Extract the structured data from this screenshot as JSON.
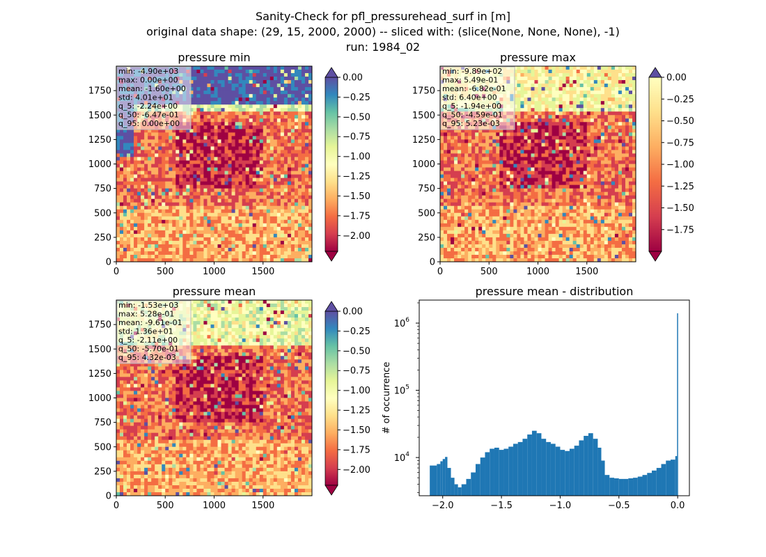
{
  "figure": {
    "title_lines": [
      "Sanity-Check for pfl_pressurehead_surf in [m]",
      "original data shape: (29, 15, 2000, 2000) -- sliced with: (slice(None, None, None), -1)",
      "run: 1984_02"
    ]
  },
  "chart_data": [
    {
      "type": "heatmap",
      "title": "pressure min",
      "colormap": "Spectral",
      "xlim": [
        0,
        2000
      ],
      "ylim": [
        0,
        2000
      ],
      "xticks": [
        "0",
        "500",
        "1000",
        "1500"
      ],
      "yticks": [
        "0",
        "250",
        "500",
        "750",
        "1000",
        "1250",
        "1500",
        "1750"
      ],
      "colorbar": {
        "range": [
          -2.2,
          0.0
        ],
        "extend": "both",
        "ticks": [
          "0.00",
          "−0.25",
          "−0.50",
          "−0.75",
          "−1.00",
          "−1.25",
          "−1.50",
          "−1.75",
          "−2.00"
        ]
      },
      "stats": [
        "min: -4.90e+03",
        "max: 0.00e+00",
        "mean: -1.60e+00",
        "std: 4.01e+01",
        "q_5: -2.24e+00",
        "q_50: -6.47e-01",
        "q_95: 0.00e+00"
      ]
    },
    {
      "type": "heatmap",
      "title": "pressure max",
      "colormap": "Spectral",
      "xlim": [
        0,
        2000
      ],
      "ylim": [
        0,
        2000
      ],
      "xticks": [
        "0",
        "500",
        "1000",
        "1500"
      ],
      "yticks": [
        "0",
        "250",
        "500",
        "750",
        "1000",
        "1250",
        "1500",
        "1750"
      ],
      "colorbar": {
        "range": [
          -2.0,
          0.0
        ],
        "extend": "both",
        "ticks": [
          "0.00",
          "−0.25",
          "−0.50",
          "−0.75",
          "−1.00",
          "−1.25",
          "−1.50",
          "−1.75"
        ]
      },
      "stats": [
        "min: -9.89e+02",
        "max: 5.49e-01",
        "mean: -6.82e-01",
        "std: 6.40e+00",
        "q_5: -1.94e+00",
        "q_50: -4.59e-01",
        "q_95: 5.23e-03"
      ]
    },
    {
      "type": "heatmap",
      "title": "pressure mean",
      "colormap": "Spectral",
      "xlim": [
        0,
        2000
      ],
      "ylim": [
        0,
        2000
      ],
      "xticks": [
        "0",
        "500",
        "1000",
        "1500"
      ],
      "yticks": [
        "0",
        "250",
        "500",
        "750",
        "1000",
        "1250",
        "1500",
        "1750"
      ],
      "colorbar": {
        "range": [
          -2.2,
          0.0
        ],
        "extend": "both",
        "ticks": [
          "0.00",
          "−0.25",
          "−0.50",
          "−0.75",
          "−1.00",
          "−1.25",
          "−1.50",
          "−1.75",
          "−2.00"
        ]
      },
      "stats": [
        "min: -1.53e+03",
        "max: 5.28e-01",
        "mean: -9.61e-01",
        "std: 1.36e+01",
        "q_5: -2.11e+00",
        "q_50: -5.70e-01",
        "q_95: 4.32e-03"
      ]
    },
    {
      "type": "bar",
      "title": "pressure mean - distribution",
      "xlabel": "",
      "ylabel": "# of occurrence",
      "yscale": "log",
      "color": "#1f77b4",
      "xlim": [
        -2.2,
        0.1
      ],
      "ylim": [
        2700,
        2200000
      ],
      "xticks": [
        {
          "value": -2.0,
          "label": "−2.0"
        },
        {
          "value": -1.5,
          "label": "−1.5"
        },
        {
          "value": -1.0,
          "label": "−1.0"
        },
        {
          "value": -0.5,
          "label": "−0.5"
        },
        {
          "value": 0.0,
          "label": "0.0"
        }
      ],
      "yticks": [
        {
          "value": 10000,
          "base": "10",
          "exp": "4"
        },
        {
          "value": 100000,
          "base": "10",
          "exp": "5"
        },
        {
          "value": 1000000,
          "base": "10",
          "exp": "6"
        }
      ],
      "series": [
        {
          "name": "",
          "points": [
            [
              -2.11,
              7600
            ],
            [
              -2.05,
              8000
            ],
            [
              -2.02,
              8800
            ],
            [
              -2.0,
              9500
            ],
            [
              -1.98,
              10200
            ],
            [
              -1.96,
              7000
            ],
            [
              -1.93,
              5000
            ],
            [
              -1.9,
              4000
            ],
            [
              -1.87,
              3600
            ],
            [
              -1.84,
              4000
            ],
            [
              -1.8,
              4800
            ],
            [
              -1.76,
              6000
            ],
            [
              -1.72,
              8000
            ],
            [
              -1.68,
              10000
            ],
            [
              -1.64,
              12000
            ],
            [
              -1.6,
              13500
            ],
            [
              -1.56,
              14000
            ],
            [
              -1.52,
              13000
            ],
            [
              -1.48,
              13500
            ],
            [
              -1.44,
              14500
            ],
            [
              -1.4,
              16000
            ],
            [
              -1.36,
              17000
            ],
            [
              -1.32,
              19000
            ],
            [
              -1.28,
              22000
            ],
            [
              -1.24,
              25000
            ],
            [
              -1.2,
              23000
            ],
            [
              -1.16,
              19000
            ],
            [
              -1.12,
              17000
            ],
            [
              -1.08,
              16000
            ],
            [
              -1.04,
              14500
            ],
            [
              -1.0,
              13000
            ],
            [
              -0.96,
              12500
            ],
            [
              -0.92,
              13500
            ],
            [
              -0.88,
              15000
            ],
            [
              -0.84,
              18000
            ],
            [
              -0.8,
              21000
            ],
            [
              -0.76,
              23000
            ],
            [
              -0.72,
              19000
            ],
            [
              -0.68,
              14000
            ],
            [
              -0.65,
              9000
            ],
            [
              -0.62,
              5500
            ],
            [
              -0.58,
              5000
            ],
            [
              -0.54,
              4900
            ],
            [
              -0.5,
              4800
            ],
            [
              -0.46,
              4800
            ],
            [
              -0.42,
              4900
            ],
            [
              -0.38,
              5000
            ],
            [
              -0.34,
              5200
            ],
            [
              -0.3,
              5500
            ],
            [
              -0.26,
              5900
            ],
            [
              -0.22,
              6400
            ],
            [
              -0.18,
              7000
            ],
            [
              -0.14,
              8000
            ],
            [
              -0.1,
              9000
            ],
            [
              -0.06,
              9300
            ],
            [
              -0.02,
              10500
            ],
            [
              -0.005,
              1400000
            ]
          ]
        }
      ]
    }
  ]
}
